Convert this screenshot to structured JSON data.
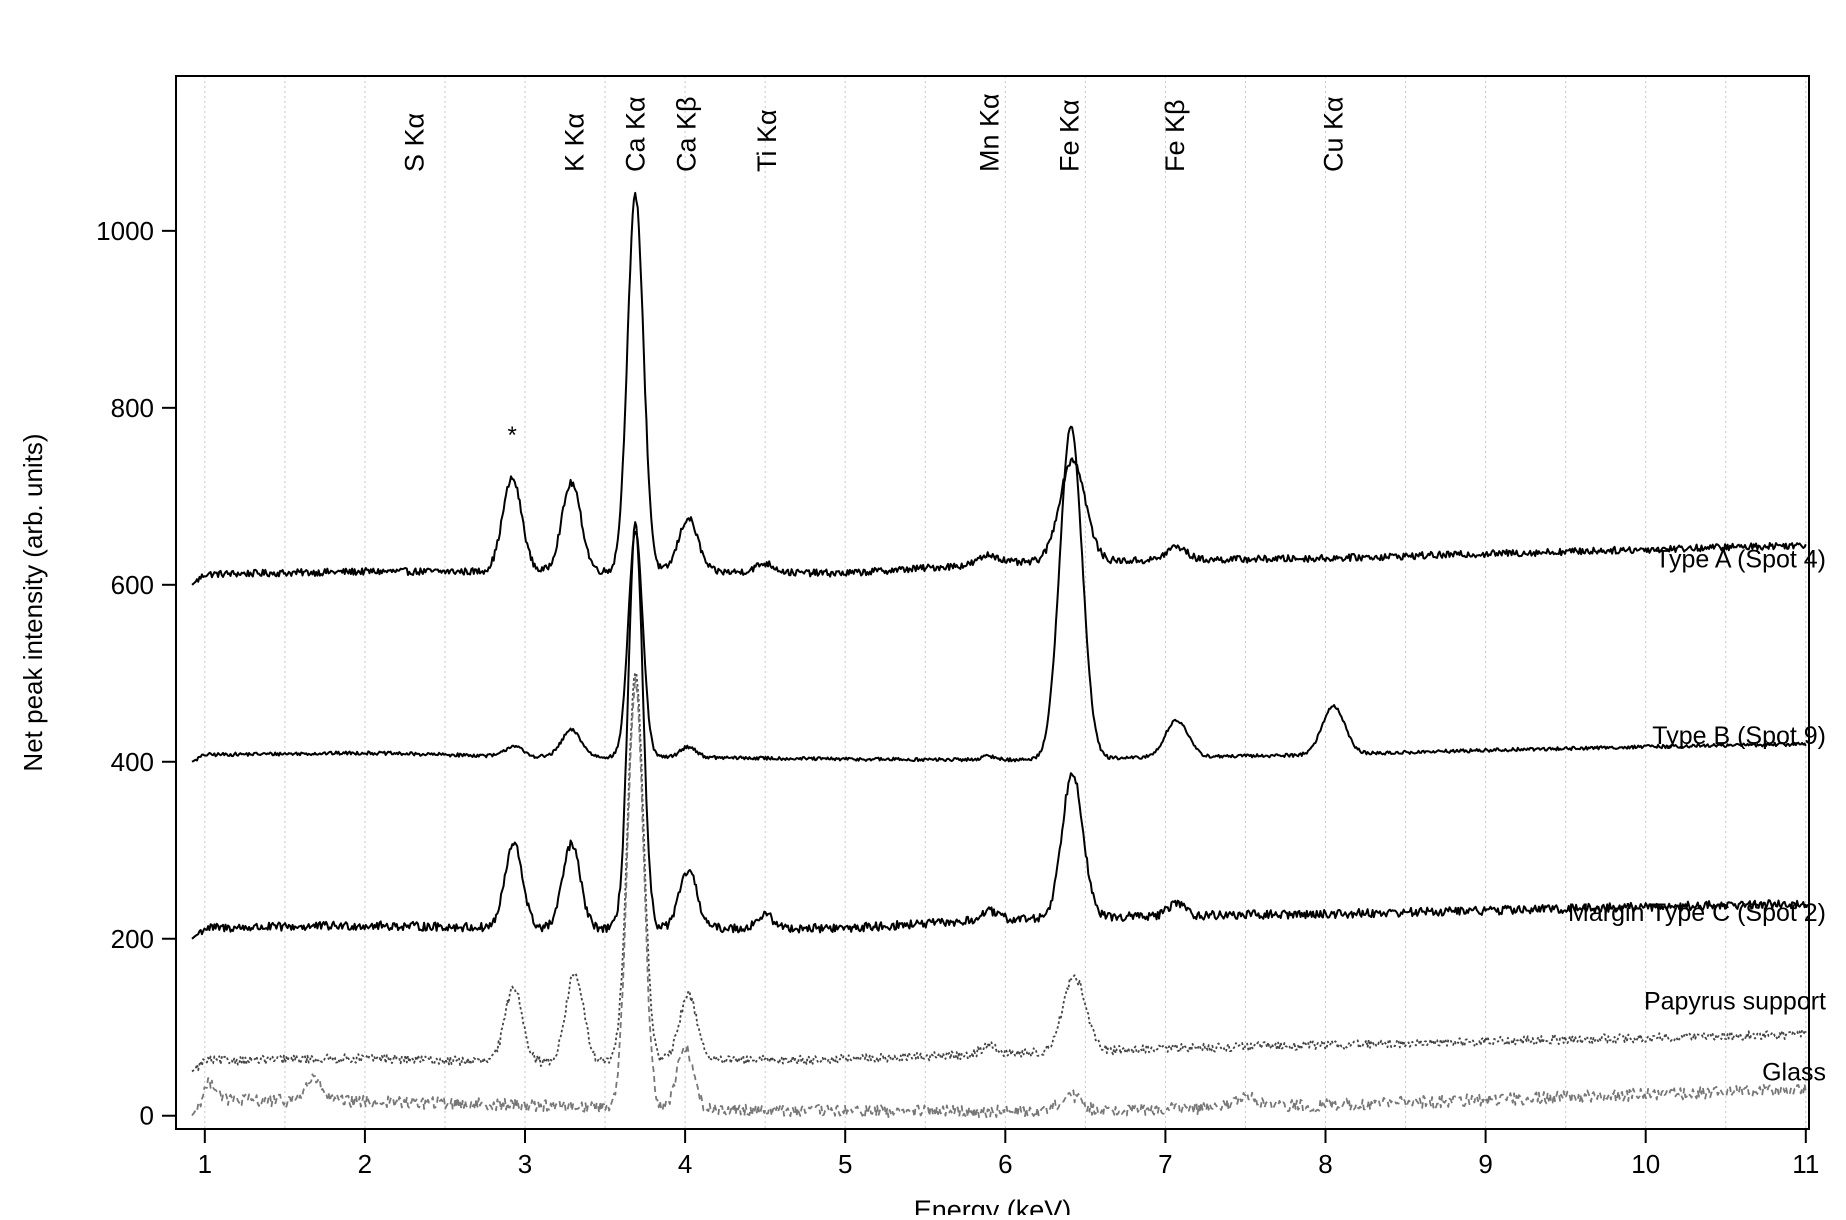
{
  "chart_data": {
    "type": "line",
    "title": "",
    "xlabel": "Energy (keV)",
    "ylabel": "Net peak intensity (arb. units)",
    "xlim": [
      0.82,
      11.02
    ],
    "ylim": [
      -15,
      1175
    ],
    "xticks": [
      1,
      2,
      3,
      4,
      5,
      6,
      7,
      8,
      9,
      10,
      11
    ],
    "yticks": [
      0,
      200,
      400,
      600,
      800,
      1000
    ],
    "grid": {
      "x_vertical_dotted": true,
      "y": false
    },
    "legend": "labels at right end of each trace",
    "element_lines": [
      {
        "label": "S Kα",
        "energy": 2.31
      },
      {
        "label": "K Kα",
        "energy": 3.31
      },
      {
        "label": "Ca Kα",
        "energy": 3.69
      },
      {
        "label": "Ca Kβ",
        "energy": 4.01
      },
      {
        "label": "Ti Kα",
        "energy": 4.51
      },
      {
        "label": "Mn Kα",
        "energy": 5.9
      },
      {
        "label": "Fe Kα",
        "energy": 6.4
      },
      {
        "label": "Fe Kβ",
        "energy": 7.06
      },
      {
        "label": "Cu Kα",
        "energy": 8.05
      }
    ],
    "annotations": [
      {
        "text": "*",
        "x": 2.92,
        "y": 760
      }
    ],
    "series": [
      {
        "name": "Type A (Spot 4)",
        "style": "solid",
        "color": "#000000",
        "baseline": [
          [
            0.92,
            600
          ],
          [
            1.0,
            612
          ],
          [
            2.0,
            615
          ],
          [
            3.0,
            615
          ],
          [
            4.0,
            615
          ],
          [
            5.0,
            613
          ],
          [
            6.0,
            625
          ],
          [
            7.0,
            628
          ],
          [
            8.0,
            630
          ],
          [
            9.0,
            635
          ],
          [
            10.0,
            640
          ],
          [
            11.0,
            645
          ]
        ],
        "peaks": [
          {
            "center": 2.92,
            "height": 105,
            "width": 0.06
          },
          {
            "center": 3.29,
            "height": 100,
            "width": 0.06
          },
          {
            "center": 3.69,
            "height": 425,
            "width": 0.05
          },
          {
            "center": 4.02,
            "height": 60,
            "width": 0.06
          },
          {
            "center": 4.5,
            "height": 10,
            "width": 0.06
          },
          {
            "center": 5.9,
            "height": 10,
            "width": 0.06
          },
          {
            "center": 6.42,
            "height": 115,
            "width": 0.08
          },
          {
            "center": 7.07,
            "height": 15,
            "width": 0.06
          }
        ],
        "noise": 4,
        "label_y": 630
      },
      {
        "name": "Type B (Spot 9)",
        "style": "solid",
        "color": "#000000",
        "baseline": [
          [
            0.92,
            400
          ],
          [
            1.0,
            408
          ],
          [
            2.0,
            410
          ],
          [
            3.0,
            406
          ],
          [
            4.0,
            405
          ],
          [
            5.0,
            403
          ],
          [
            6.0,
            402
          ],
          [
            7.0,
            405
          ],
          [
            8.0,
            408
          ],
          [
            9.0,
            413
          ],
          [
            10.0,
            417
          ],
          [
            11.0,
            420
          ]
        ],
        "peaks": [
          {
            "center": 2.93,
            "height": 12,
            "width": 0.05
          },
          {
            "center": 3.29,
            "height": 30,
            "width": 0.06
          },
          {
            "center": 3.69,
            "height": 255,
            "width": 0.045
          },
          {
            "center": 4.02,
            "height": 12,
            "width": 0.05
          },
          {
            "center": 5.9,
            "height": 4,
            "width": 0.05
          },
          {
            "center": 6.41,
            "height": 375,
            "width": 0.07
          },
          {
            "center": 7.07,
            "height": 42,
            "width": 0.07
          },
          {
            "center": 8.05,
            "height": 55,
            "width": 0.07
          }
        ],
        "noise": 2,
        "label_y": 430
      },
      {
        "name": "Margin Type C (Spot 2)",
        "style": "solid",
        "color": "#000000",
        "baseline": [
          [
            0.92,
            200
          ],
          [
            1.0,
            212
          ],
          [
            2.0,
            215
          ],
          [
            3.0,
            212
          ],
          [
            4.0,
            212
          ],
          [
            5.0,
            212
          ],
          [
            6.0,
            222
          ],
          [
            7.0,
            226
          ],
          [
            8.0,
            228
          ],
          [
            9.0,
            232
          ],
          [
            10.0,
            236
          ],
          [
            11.0,
            240
          ]
        ],
        "peaks": [
          {
            "center": 2.93,
            "height": 95,
            "width": 0.055
          },
          {
            "center": 3.29,
            "height": 95,
            "width": 0.055
          },
          {
            "center": 3.69,
            "height": 455,
            "width": 0.045
          },
          {
            "center": 4.02,
            "height": 65,
            "width": 0.055
          },
          {
            "center": 4.5,
            "height": 15,
            "width": 0.05
          },
          {
            "center": 5.9,
            "height": 10,
            "width": 0.05
          },
          {
            "center": 6.42,
            "height": 165,
            "width": 0.065
          },
          {
            "center": 7.07,
            "height": 15,
            "width": 0.05
          }
        ],
        "noise": 5,
        "label_y": 230
      },
      {
        "name": "Papyrus support",
        "style": "dotted",
        "color": "#444444",
        "baseline": [
          [
            0.92,
            50
          ],
          [
            1.0,
            62
          ],
          [
            2.0,
            65
          ],
          [
            3.0,
            60
          ],
          [
            4.0,
            62
          ],
          [
            5.0,
            64
          ],
          [
            6.0,
            70
          ],
          [
            7.0,
            76
          ],
          [
            8.0,
            80
          ],
          [
            9.0,
            84
          ],
          [
            10.0,
            88
          ],
          [
            11.0,
            92
          ]
        ],
        "peaks": [
          {
            "center": 2.93,
            "height": 85,
            "width": 0.055
          },
          {
            "center": 3.31,
            "height": 100,
            "width": 0.055
          },
          {
            "center": 3.69,
            "height": 440,
            "width": 0.05
          },
          {
            "center": 4.02,
            "height": 75,
            "width": 0.055
          },
          {
            "center": 5.9,
            "height": 10,
            "width": 0.05
          },
          {
            "center": 6.43,
            "height": 85,
            "width": 0.07
          }
        ],
        "noise": 5,
        "label_y": 130
      },
      {
        "name": "Glass",
        "style": "dashed",
        "color": "#777777",
        "baseline": [
          [
            0.92,
            0
          ],
          [
            1.0,
            18
          ],
          [
            2.0,
            16
          ],
          [
            3.0,
            12
          ],
          [
            4.0,
            8
          ],
          [
            5.0,
            5
          ],
          [
            6.0,
            5
          ],
          [
            7.0,
            8
          ],
          [
            8.0,
            12
          ],
          [
            9.0,
            18
          ],
          [
            10.0,
            24
          ],
          [
            11.0,
            30
          ]
        ],
        "peaks": [
          {
            "center": 1.04,
            "height": 20,
            "width": 0.04
          },
          {
            "center": 1.68,
            "height": 25,
            "width": 0.05
          },
          {
            "center": 3.69,
            "height": 480,
            "width": 0.05
          },
          {
            "center": 4.0,
            "height": 70,
            "width": 0.05
          },
          {
            "center": 6.4,
            "height": 18,
            "width": 0.06
          },
          {
            "center": 7.5,
            "height": 12,
            "width": 0.06
          }
        ],
        "noise": 7,
        "label_y": 50
      }
    ]
  }
}
